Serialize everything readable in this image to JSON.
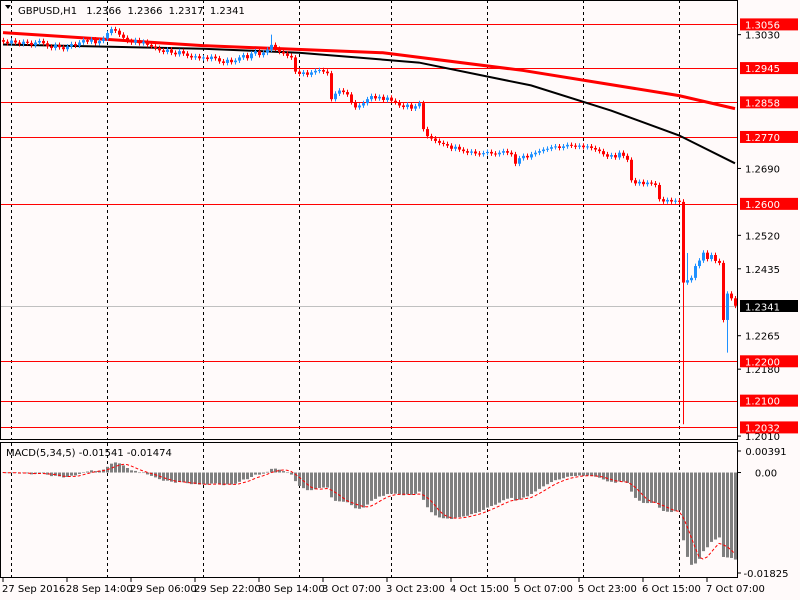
{
  "chart_data": {
    "type": "candlestick",
    "symbol": "GBPUSD",
    "timeframe": "H1",
    "header": {
      "symbol_tf": "GBPUSD,H1",
      "open": "1.2366",
      "high": "1.2366",
      "low": "1.2317",
      "close": "1.2341"
    },
    "price_range": [
      1.2,
      1.3118
    ],
    "colors": {
      "bull": "#1e90ff",
      "bear": "#ff0000",
      "background": "#fffafa",
      "level_line": "#ff0000",
      "ma_slow": "#ff0000",
      "ma_fast": "#000000",
      "macd_hist": "#7f7f7f",
      "macd_signal": "#ff0000"
    },
    "closes": [
      1.3012,
      1.3008,
      1.3015,
      1.301,
      1.3006,
      1.3012,
      1.3009,
      1.3003,
      1.301,
      1.3014,
      1.3008,
      1.3,
      1.2996,
      1.3004,
      1.2998,
      1.2993,
      1.3,
      1.3006,
      1.3002,
      1.301,
      1.3016,
      1.3012,
      1.3018,
      1.3008,
      1.3014,
      1.302,
      1.3034,
      1.3044,
      1.304,
      1.303,
      1.3022,
      1.3014,
      1.301,
      1.3016,
      1.3008,
      1.3012,
      1.3004,
      1.3,
      1.2996,
      1.299,
      1.2986,
      1.2992,
      1.2984,
      1.298,
      1.2988,
      1.2982,
      1.2976,
      1.2972,
      1.2975,
      1.297,
      1.2972,
      1.2968,
      1.2974,
      1.297,
      1.2962,
      1.2958,
      1.2966,
      1.296,
      1.2964,
      1.2972,
      1.2978,
      1.297,
      1.2982,
      1.2988,
      1.2978,
      1.2984,
      1.2992,
      1.3004,
      1.2994,
      1.2986,
      1.2982,
      1.2976,
      1.2972,
      1.2936,
      1.293,
      1.2934,
      1.2928,
      1.2934,
      1.2938,
      1.294,
      1.2936,
      1.2932,
      1.2866,
      1.288,
      1.2888,
      1.2884,
      1.2878,
      1.2858,
      1.2845,
      1.285,
      1.2856,
      1.2866,
      1.2874,
      1.2868,
      1.2872,
      1.2864,
      1.287,
      1.2862,
      1.2858,
      1.285,
      1.2846,
      1.2852,
      1.2842,
      1.2848,
      1.2856,
      1.279,
      1.2772,
      1.2766,
      1.276,
      1.2755,
      1.2752,
      1.2748,
      1.274,
      1.2745,
      1.2738,
      1.2734,
      1.273,
      1.2733,
      1.2728,
      1.2726,
      1.2729,
      1.2732,
      1.2728,
      1.2726,
      1.273,
      1.2734,
      1.273,
      1.2726,
      1.2702,
      1.2716,
      1.2722,
      1.2718,
      1.2726,
      1.273,
      1.2734,
      1.2738,
      1.274,
      1.2744,
      1.2746,
      1.2742,
      1.2746,
      1.275,
      1.2748,
      1.2745,
      1.2748,
      1.2744,
      1.2746,
      1.2742,
      1.2738,
      1.2734,
      1.2726,
      1.272,
      1.2724,
      1.2718,
      1.273,
      1.2722,
      1.2712,
      1.266,
      1.2652,
      1.2656,
      1.265,
      1.2654,
      1.2652,
      1.2648,
      1.2612,
      1.2606,
      1.261,
      1.2606,
      1.2608,
      1.2605,
      1.24,
      1.2406,
      1.2412,
      1.2442,
      1.2456,
      1.2476,
      1.246,
      1.247,
      1.2455,
      1.245,
      1.2305,
      1.2372,
      1.236,
      1.2341
    ],
    "wick_extremes": [
      {
        "bar": 27,
        "high": 1.305
      },
      {
        "bar": 67,
        "high": 1.303
      },
      {
        "bar": 170,
        "high": 1.2612,
        "low": 1.204
      },
      {
        "bar": 171,
        "high": 1.2475
      },
      {
        "bar": 181,
        "low": 1.2222
      }
    ],
    "moving_averages": [
      {
        "color": "#ff0000",
        "points": [
          [
            0,
            1.3035
          ],
          [
            50,
            1.3002
          ],
          [
            95,
            1.2984
          ],
          [
            130,
            1.2939
          ],
          [
            169,
            1.2875
          ],
          [
            183,
            1.2842
          ]
        ]
      },
      {
        "color": "#000000",
        "points": [
          [
            0,
            1.3005
          ],
          [
            50,
            1.2994
          ],
          [
            74,
            1.2984
          ],
          [
            104,
            1.2959
          ],
          [
            132,
            1.2901
          ],
          [
            152,
            1.2837
          ],
          [
            169,
            1.2774
          ],
          [
            183,
            1.2703
          ]
        ]
      }
    ],
    "horizontal_levels": [
      "1.3056",
      "1.2945",
      "1.2858",
      "1.2770",
      "1.2600",
      "1.2200",
      "1.2100",
      "1.2032"
    ],
    "current_price": "1.2341",
    "y_ticks": [
      "1.3030",
      "1.2690",
      "1.2520",
      "1.2435",
      "1.2265",
      "1.2180",
      "1.2010"
    ],
    "period_separators": [
      2,
      26,
      50,
      74,
      97,
      121,
      145,
      169
    ],
    "x_labels": [
      {
        "bar": 0,
        "text": "27 Sep 2016"
      },
      {
        "bar": 16,
        "text": "28 Sep 14:00"
      },
      {
        "bar": 32,
        "text": "29 Sep 06:00"
      },
      {
        "bar": 48,
        "text": "29 Sep 22:00"
      },
      {
        "bar": 64,
        "text": "30 Sep 14:00"
      },
      {
        "bar": 80,
        "text": "3 Oct 07:00"
      },
      {
        "bar": 96,
        "text": "3 Oct 23:00"
      },
      {
        "bar": 112,
        "text": "4 Oct 15:00"
      },
      {
        "bar": 128,
        "text": "5 Oct 07:00"
      },
      {
        "bar": 144,
        "text": "5 Oct 23:00"
      },
      {
        "bar": 160,
        "text": "6 Oct 15:00"
      },
      {
        "bar": 176,
        "text": "7 Oct 07:00"
      }
    ],
    "macd": {
      "label": "MACD(5,34,5) -0.01541 -0.01474",
      "fast": 5,
      "slow": 34,
      "signal": 5,
      "main_value": "-0.01541",
      "signal_value": "-0.01474",
      "range": [
        -0.01825,
        0.00391
      ],
      "y_ticks": [
        "0.00391",
        "0.00",
        "-0.01825"
      ]
    }
  }
}
